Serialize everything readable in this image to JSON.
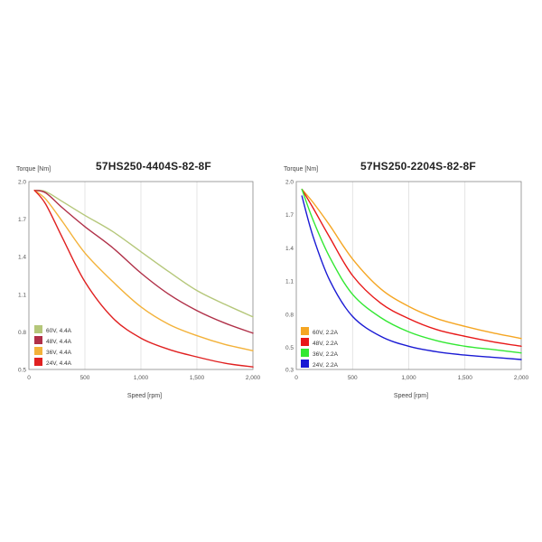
{
  "chart_data": [
    {
      "type": "line",
      "title": "57HS250-4404S-82-8F",
      "ylabel": "Torque [Nm]",
      "xlabel": "Speed [rpm]",
      "xlim": [
        0,
        2000
      ],
      "ylim": [
        0.5,
        2.0
      ],
      "x_ticks": [
        "0",
        "500",
        "1,000",
        "1,500",
        "2,000"
      ],
      "x_tick_values": [
        0,
        500,
        1000,
        1500,
        2000
      ],
      "y_ticks": [
        "0.5",
        "0.8",
        "1.1",
        "1.4",
        "1.7",
        "2.0"
      ],
      "y_tick_values": [
        0.5,
        0.8,
        1.1,
        1.4,
        1.7,
        2.0
      ],
      "grid": "vertical",
      "legend_position": "bottom-left",
      "series": [
        {
          "name": "60V, 4.4A",
          "color": "#b5c77a",
          "points": [
            [
              50,
              1.93
            ],
            [
              150,
              1.92
            ],
            [
              300,
              1.84
            ],
            [
              500,
              1.73
            ],
            [
              750,
              1.6
            ],
            [
              1000,
              1.44
            ],
            [
              1250,
              1.28
            ],
            [
              1500,
              1.13
            ],
            [
              1750,
              1.02
            ],
            [
              2000,
              0.92
            ]
          ]
        },
        {
          "name": "48V, 4.4A",
          "color": "#b03048",
          "points": [
            [
              50,
              1.93
            ],
            [
              150,
              1.91
            ],
            [
              300,
              1.79
            ],
            [
              500,
              1.64
            ],
            [
              750,
              1.47
            ],
            [
              1000,
              1.27
            ],
            [
              1250,
              1.1
            ],
            [
              1500,
              0.97
            ],
            [
              1750,
              0.87
            ],
            [
              2000,
              0.79
            ]
          ]
        },
        {
          "name": "36V, 4.4A",
          "color": "#f3b23a",
          "points": [
            [
              50,
              1.93
            ],
            [
              150,
              1.86
            ],
            [
              300,
              1.68
            ],
            [
              500,
              1.43
            ],
            [
              750,
              1.2
            ],
            [
              1000,
              1.0
            ],
            [
              1250,
              0.86
            ],
            [
              1500,
              0.77
            ],
            [
              1750,
              0.7
            ],
            [
              2000,
              0.65
            ]
          ]
        },
        {
          "name": "24V, 4.4A",
          "color": "#e02020",
          "points": [
            [
              50,
              1.93
            ],
            [
              150,
              1.82
            ],
            [
              300,
              1.55
            ],
            [
              500,
              1.2
            ],
            [
              750,
              0.91
            ],
            [
              1000,
              0.75
            ],
            [
              1250,
              0.66
            ],
            [
              1500,
              0.6
            ],
            [
              1750,
              0.55
            ],
            [
              2000,
              0.52
            ]
          ]
        }
      ]
    },
    {
      "type": "line",
      "title": "57HS250-2204S-82-8F",
      "ylabel": "Torque [Nm]",
      "xlabel": "Speed [rpm]",
      "xlim": [
        0,
        2000
      ],
      "ylim": [
        0.3,
        2.0
      ],
      "x_ticks": [
        "0",
        "500",
        "1,000",
        "1,500",
        "2,000"
      ],
      "x_tick_values": [
        0,
        500,
        1000,
        1500,
        2000
      ],
      "y_ticks": [
        "0.3",
        "0.5",
        "0.8",
        "1.1",
        "1.4",
        "1.7",
        "2.0"
      ],
      "y_tick_values": [
        0.3,
        0.5,
        0.8,
        1.1,
        1.4,
        1.7,
        2.0
      ],
      "grid": "vertical",
      "legend_position": "bottom-left",
      "series": [
        {
          "name": "60V, 2.2A",
          "color": "#f5a623",
          "points": [
            [
              50,
              1.93
            ],
            [
              150,
              1.81
            ],
            [
              300,
              1.6
            ],
            [
              500,
              1.3
            ],
            [
              750,
              1.03
            ],
            [
              1000,
              0.87
            ],
            [
              1250,
              0.76
            ],
            [
              1500,
              0.69
            ],
            [
              1750,
              0.63
            ],
            [
              2000,
              0.58
            ]
          ]
        },
        {
          "name": "48V, 2.2A",
          "color": "#e81818",
          "points": [
            [
              50,
              1.93
            ],
            [
              150,
              1.76
            ],
            [
              300,
              1.49
            ],
            [
              500,
              1.15
            ],
            [
              750,
              0.9
            ],
            [
              1000,
              0.76
            ],
            [
              1250,
              0.66
            ],
            [
              1500,
              0.6
            ],
            [
              1750,
              0.55
            ],
            [
              2000,
              0.51
            ]
          ]
        },
        {
          "name": "36V, 2.2A",
          "color": "#33e833",
          "points": [
            [
              50,
              1.93
            ],
            [
              150,
              1.65
            ],
            [
              300,
              1.31
            ],
            [
              500,
              0.98
            ],
            [
              750,
              0.77
            ],
            [
              1000,
              0.64
            ],
            [
              1250,
              0.56
            ],
            [
              1500,
              0.51
            ],
            [
              1750,
              0.48
            ],
            [
              2000,
              0.45
            ]
          ]
        },
        {
          "name": "24V, 2.2A",
          "color": "#1a1ad4",
          "points": [
            [
              50,
              1.87
            ],
            [
              150,
              1.5
            ],
            [
              300,
              1.1
            ],
            [
              500,
              0.78
            ],
            [
              750,
              0.6
            ],
            [
              1000,
              0.51
            ],
            [
              1250,
              0.46
            ],
            [
              1500,
              0.43
            ],
            [
              1750,
              0.41
            ],
            [
              2000,
              0.39
            ]
          ]
        }
      ]
    }
  ]
}
